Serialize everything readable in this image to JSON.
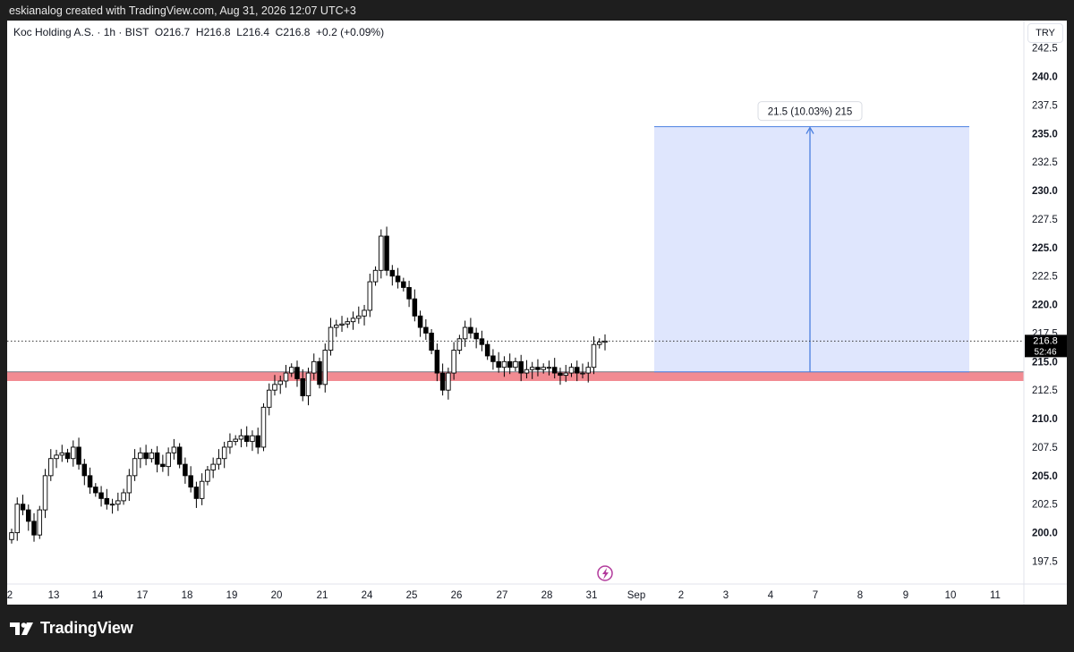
{
  "caption": "eskianalog created with TradingView.com, Aug 31, 2026 12:07 UTC+3",
  "legend": {
    "symbol": "Koc Holding A.S. · 1h · BIST",
    "o_label": "O",
    "o": "216.7",
    "h_label": "H",
    "h": "216.8",
    "l_label": "L",
    "l": "216.4",
    "c_label": "C",
    "c": "216.8",
    "change": "+0.2 (+0.09%)"
  },
  "currency": "TRY",
  "last_price": {
    "value": "216.8",
    "countdown": "52:46"
  },
  "footer_brand": "TradingView",
  "colors": {
    "support_zone": "#f28b92",
    "target_zone": "#dfe6fd",
    "target_line": "#4a7fe0",
    "candle_up": "#ffffff",
    "candle_down": "#000000"
  },
  "chart_data": {
    "type": "candlestick",
    "title": "",
    "ylim": [
      195.5,
      244.9
    ],
    "y_ticks": [
      "197.5",
      "200.0",
      "202.5",
      "205.0",
      "207.5",
      "210.0",
      "212.5",
      "215.0",
      "217.5",
      "220.0",
      "222.5",
      "225.0",
      "227.5",
      "230.0",
      "232.5",
      "235.0",
      "237.5",
      "240.0",
      "242.5"
    ],
    "x_labels": [
      "2",
      "13",
      "14",
      "17",
      "18",
      "19",
      "20",
      "21",
      "24",
      "25",
      "26",
      "27",
      "28",
      "31",
      "Sep",
      "2",
      "3",
      "4",
      "7",
      "8",
      "9",
      "10",
      "11"
    ],
    "closes": [
      200.0,
      202.5,
      202.0,
      201.0,
      199.8,
      202.0,
      205.0,
      206.5,
      206.8,
      207.0,
      206.5,
      207.5,
      206.0,
      205.0,
      204.0,
      203.5,
      203.0,
      202.5,
      202.5,
      202.8,
      203.5,
      205.0,
      206.5,
      207.0,
      206.5,
      207.0,
      206.0,
      205.8,
      207.0,
      207.5,
      206.0,
      205.0,
      204.0,
      203.0,
      204.5,
      205.5,
      206.0,
      206.5,
      207.5,
      208.0,
      208.2,
      208.5,
      208.0,
      208.5,
      207.5,
      211.0,
      212.5,
      213.0,
      213.3,
      214.0,
      214.5,
      213.5,
      212.0,
      214.0,
      215.0,
      213.0,
      216.0,
      218.0,
      218.2,
      218.3,
      218.5,
      218.8,
      219.0,
      219.5,
      222.0,
      223.0,
      226.0,
      223.0,
      222.5,
      222.0,
      221.5,
      220.5,
      219.0,
      218.0,
      217.5,
      216.0,
      214.0,
      212.5,
      214.0,
      216.0,
      217.0,
      218.0,
      217.5,
      217.0,
      216.5,
      215.5,
      215.0,
      214.5,
      215.0,
      214.5,
      215.0,
      214.0,
      214.3,
      214.5,
      214.3,
      214.5,
      214.5,
      214.0,
      213.8,
      214.0,
      214.5,
      214.0,
      214.0,
      214.5,
      216.5,
      216.7,
      216.8
    ],
    "support_zone": {
      "low": 213.3,
      "high": 214.1
    },
    "target": {
      "from": 214.1,
      "to": 235.6,
      "label": "21.5 (10.03%) 215"
    }
  }
}
